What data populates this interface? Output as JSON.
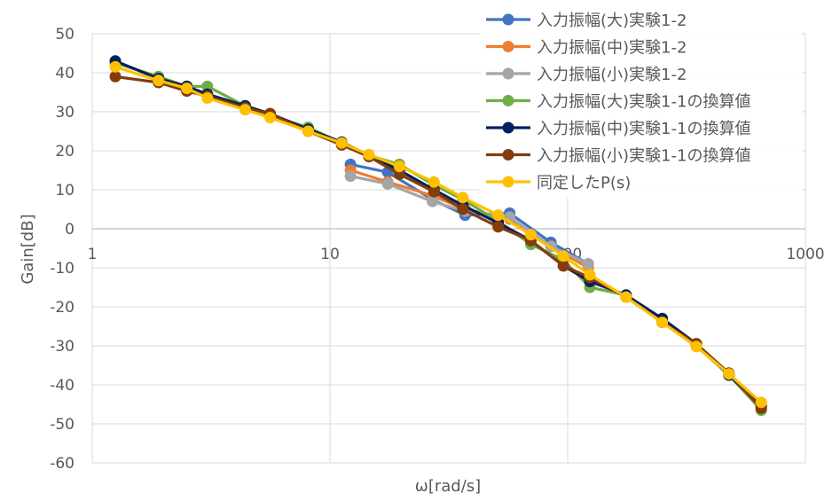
{
  "chart_data": {
    "type": "line",
    "title": "",
    "xlabel": "ω[rad/s]",
    "ylabel": "Gain[dB]",
    "xscale": "log",
    "xlim": [
      1,
      1000
    ],
    "ylim": [
      -60,
      50
    ],
    "xticks": [
      "1",
      "10",
      "100",
      "1000"
    ],
    "yticks": [
      "50",
      "40",
      "30",
      "20",
      "10",
      "0",
      "-10",
      "-20",
      "-30",
      "-40",
      "-50",
      "-60"
    ],
    "grid": true,
    "legend_position": "top-right",
    "series": [
      {
        "name": "入力振幅(大)実験1-2",
        "color": "#4472C4",
        "points": [
          [
            12.2,
            16.5
          ],
          [
            17.5,
            14.5
          ],
          [
            27,
            7.5
          ],
          [
            37,
            3.5
          ],
          [
            57,
            4
          ],
          [
            85,
            -3.5
          ],
          [
            122,
            -9
          ]
        ]
      },
      {
        "name": "入力振幅(中)実験1-2",
        "color": "#ED7D31",
        "points": [
          [
            12.2,
            15
          ],
          [
            17.5,
            12
          ],
          [
            27,
            8.5
          ],
          [
            37,
            5
          ],
          [
            57,
            2.5
          ],
          [
            85,
            -4.5
          ],
          [
            122,
            -10
          ]
        ]
      },
      {
        "name": "入力振幅(小)実験1-2",
        "color": "#A5A5A5",
        "points": [
          [
            12.2,
            13.5
          ],
          [
            17.5,
            11.5
          ],
          [
            27,
            7
          ],
          [
            37,
            4.5
          ],
          [
            57,
            3
          ],
          [
            85,
            -4.5
          ],
          [
            122,
            -9
          ]
        ]
      },
      {
        "name": "入力振幅(大)実験1-1の換算値",
        "color": "#70AD47",
        "points": [
          [
            1.25,
            42.5
          ],
          [
            1.9,
            39
          ],
          [
            2.5,
            36.5
          ],
          [
            3.05,
            36.5
          ],
          [
            4.4,
            31.5
          ],
          [
            5.6,
            29
          ],
          [
            8.1,
            26
          ],
          [
            11.2,
            22
          ],
          [
            14.6,
            18.8
          ],
          [
            19.6,
            16.5
          ],
          [
            27.4,
            11.2
          ],
          [
            36.2,
            7.5
          ],
          [
            51,
            2
          ],
          [
            70,
            -4
          ],
          [
            96,
            -8
          ],
          [
            124,
            -15
          ],
          [
            176,
            -17
          ],
          [
            250,
            -23.5
          ],
          [
            348,
            -30
          ],
          [
            477,
            -37.5
          ],
          [
            652,
            -46.5
          ]
        ]
      },
      {
        "name": "入力振幅(中)実験1-1の換算値",
        "color": "#002060",
        "points": [
          [
            1.25,
            43
          ],
          [
            1.9,
            38.5
          ],
          [
            2.5,
            36.5
          ],
          [
            3.05,
            34.5
          ],
          [
            4.4,
            31.5
          ],
          [
            5.6,
            29.5
          ],
          [
            8.1,
            25.5
          ],
          [
            11.2,
            22.2
          ],
          [
            14.6,
            18.8
          ],
          [
            19.6,
            15
          ],
          [
            27.4,
            10
          ],
          [
            36.2,
            6
          ],
          [
            51,
            1.5
          ],
          [
            70,
            -3
          ],
          [
            96,
            -9.5
          ],
          [
            124,
            -13.5
          ],
          [
            176,
            -17
          ],
          [
            250,
            -23
          ],
          [
            348,
            -29.5
          ],
          [
            477,
            -37.5
          ],
          [
            652,
            -45.5
          ]
        ]
      },
      {
        "name": "入力振幅(小)実験1-1の換算値",
        "color": "#843C0C",
        "points": [
          [
            1.25,
            39
          ],
          [
            1.9,
            37.5
          ],
          [
            2.5,
            35.3
          ],
          [
            3.05,
            34
          ],
          [
            4.4,
            31
          ],
          [
            5.6,
            29.5
          ],
          [
            8.1,
            25
          ],
          [
            11.2,
            21.5
          ],
          [
            14.6,
            18.5
          ],
          [
            19.6,
            14
          ],
          [
            27.4,
            9.5
          ],
          [
            36.2,
            5
          ],
          [
            51,
            0.5
          ],
          [
            70,
            -3
          ],
          [
            96,
            -9.5
          ],
          [
            124,
            -12.5
          ],
          [
            176,
            -17.5
          ],
          [
            250,
            -24
          ],
          [
            348,
            -29.5
          ],
          [
            477,
            -37
          ],
          [
            652,
            -46
          ]
        ]
      },
      {
        "name": "同定したP(s)",
        "color": "#FFC000",
        "points": [
          [
            1.25,
            41.5
          ],
          [
            1.9,
            38
          ],
          [
            2.5,
            36
          ],
          [
            3.05,
            33.5
          ],
          [
            4.4,
            30.5
          ],
          [
            5.6,
            28.5
          ],
          [
            8.1,
            25
          ],
          [
            11.2,
            22
          ],
          [
            14.6,
            19
          ],
          [
            19.6,
            16
          ],
          [
            27.4,
            12
          ],
          [
            36.2,
            8
          ],
          [
            51,
            3.5
          ],
          [
            70,
            -1.5
          ],
          [
            96,
            -7
          ],
          [
            124,
            -11.8
          ],
          [
            176,
            -17.5
          ],
          [
            250,
            -24
          ],
          [
            348,
            -30.2
          ],
          [
            477,
            -37.2
          ],
          [
            652,
            -44.5
          ]
        ]
      }
    ]
  }
}
